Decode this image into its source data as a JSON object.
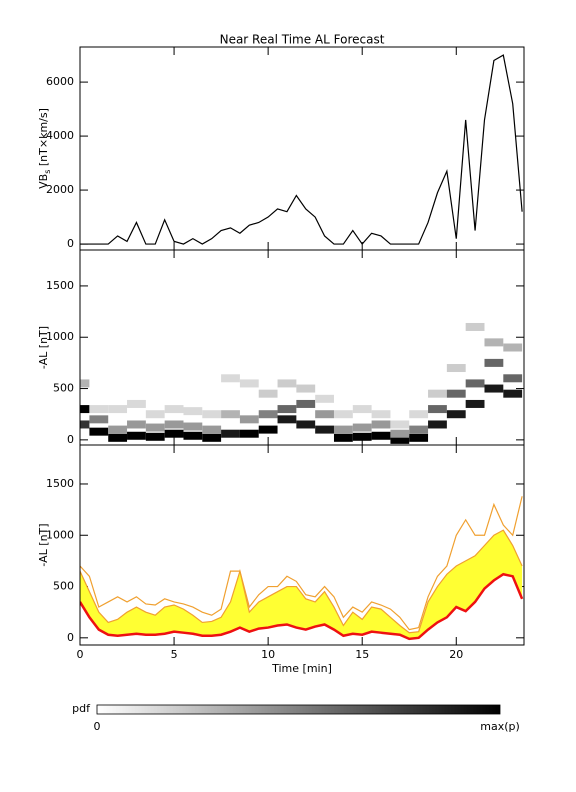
{
  "chart_data": [
    {
      "type": "line",
      "title": "Near Real Time AL Forecast",
      "y_label": "VB",
      "y_label_sub": "s",
      "y_label_rest": " [nT×km/s]",
      "x": [
        0,
        0.5,
        1,
        1.5,
        2,
        2.5,
        3,
        3.5,
        4,
        4.5,
        5,
        5.5,
        6,
        6.5,
        7,
        7.5,
        8,
        8.5,
        9,
        9.5,
        10,
        10.5,
        11,
        11.5,
        12,
        12.5,
        13,
        13.5,
        14,
        14.5,
        15,
        15.5,
        16,
        16.5,
        17,
        17.5,
        18,
        18.5,
        19,
        19.5,
        20,
        20.5,
        21,
        21.5,
        22,
        22.5,
        23,
        23.5
      ],
      "values": [
        0,
        0,
        0,
        0,
        300,
        100,
        800,
        0,
        0,
        900,
        100,
        0,
        200,
        0,
        200,
        500,
        600,
        400,
        700,
        800,
        1000,
        1300,
        1200,
        1800,
        1300,
        1000,
        300,
        0,
        0,
        500,
        0,
        400,
        300,
        0,
        0,
        0,
        0,
        800,
        1900,
        2700,
        200,
        4600,
        500,
        4600,
        6800,
        7000,
        5200,
        1200
      ],
      "color": "#000000",
      "xlim": [
        0,
        23.6
      ],
      "xticks": [
        0,
        5,
        10,
        15,
        20
      ],
      "ylim": [
        -220,
        7300
      ],
      "yticks": [
        0,
        2000,
        4000,
        6000
      ]
    },
    {
      "type": "heatmap",
      "y_label": "-AL [nT]",
      "cells": [
        [
          0,
          300,
          1
        ],
        [
          0,
          150,
          0.8
        ],
        [
          0,
          550,
          0.3
        ],
        [
          1,
          80,
          1
        ],
        [
          1,
          200,
          0.5
        ],
        [
          1,
          300,
          0.15
        ],
        [
          2,
          20,
          1
        ],
        [
          2,
          100,
          0.4
        ],
        [
          2,
          300,
          0.15
        ],
        [
          3,
          40,
          1
        ],
        [
          3,
          150,
          0.4
        ],
        [
          3,
          350,
          0.15
        ],
        [
          4,
          30,
          1
        ],
        [
          4,
          120,
          0.4
        ],
        [
          4,
          250,
          0.15
        ],
        [
          5,
          60,
          1
        ],
        [
          5,
          150,
          0.4
        ],
        [
          5,
          300,
          0.15
        ],
        [
          6,
          40,
          1
        ],
        [
          6,
          130,
          0.4
        ],
        [
          6,
          280,
          0.15
        ],
        [
          7,
          20,
          1
        ],
        [
          7,
          100,
          0.4
        ],
        [
          7,
          250,
          0.15
        ],
        [
          8,
          60,
          0.9
        ],
        [
          8,
          250,
          0.3
        ],
        [
          8,
          600,
          0.15
        ],
        [
          9,
          60,
          1
        ],
        [
          9,
          200,
          0.4
        ],
        [
          9,
          550,
          0.15
        ],
        [
          10,
          100,
          1
        ],
        [
          10,
          250,
          0.5
        ],
        [
          10,
          450,
          0.2
        ],
        [
          11,
          200,
          0.9
        ],
        [
          11,
          300,
          0.6
        ],
        [
          11,
          550,
          0.2
        ],
        [
          12,
          150,
          0.9
        ],
        [
          12,
          350,
          0.6
        ],
        [
          12,
          500,
          0.2
        ],
        [
          13,
          100,
          0.9
        ],
        [
          13,
          250,
          0.4
        ],
        [
          13,
          400,
          0.15
        ],
        [
          14,
          20,
          1
        ],
        [
          14,
          100,
          0.4
        ],
        [
          14,
          250,
          0.15
        ],
        [
          15,
          30,
          1
        ],
        [
          15,
          120,
          0.4
        ],
        [
          15,
          300,
          0.15
        ],
        [
          16,
          40,
          1
        ],
        [
          16,
          150,
          0.4
        ],
        [
          16,
          250,
          0.15
        ],
        [
          17,
          0,
          1
        ],
        [
          17,
          60,
          0.4
        ],
        [
          17,
          150,
          0.15
        ],
        [
          18,
          20,
          1
        ],
        [
          18,
          100,
          0.5
        ],
        [
          18,
          250,
          0.15
        ],
        [
          19,
          150,
          0.9
        ],
        [
          19,
          300,
          0.6
        ],
        [
          19,
          450,
          0.2
        ],
        [
          20,
          250,
          0.9
        ],
        [
          20,
          450,
          0.6
        ],
        [
          20,
          700,
          0.2
        ],
        [
          21,
          350,
          0.9
        ],
        [
          21,
          550,
          0.6
        ],
        [
          21,
          1100,
          0.2
        ],
        [
          22,
          500,
          0.9
        ],
        [
          22,
          750,
          0.6
        ],
        [
          22,
          950,
          0.3
        ],
        [
          23,
          450,
          0.9
        ],
        [
          23,
          600,
          0.6
        ],
        [
          23,
          900,
          0.3
        ]
      ],
      "xlim": [
        0,
        23.6
      ],
      "xticks": [
        0,
        5,
        10,
        15,
        20
      ],
      "ylim": [
        -50,
        1850
      ],
      "yticks": [
        0,
        500,
        1000,
        1500
      ],
      "colorbar": {
        "label": "pdf",
        "min": 0,
        "max_label": "max(p)"
      }
    },
    {
      "type": "line",
      "y_label": "-AL [nT]",
      "x_label": "Time [min]",
      "x": [
        0,
        0.5,
        1,
        1.5,
        2,
        2.5,
        3,
        3.5,
        4,
        4.5,
        5,
        5.5,
        6,
        6.5,
        7,
        7.5,
        8,
        8.5,
        9,
        9.5,
        10,
        10.5,
        11,
        11.5,
        12,
        12.5,
        13,
        13.5,
        14,
        14.5,
        15,
        15.5,
        16,
        16.5,
        17,
        17.5,
        18,
        18.5,
        19,
        19.5,
        20,
        20.5,
        21,
        21.5,
        22,
        22.5,
        23,
        23.5
      ],
      "series": [
        {
          "color": "#f0a030",
          "values": [
            700,
            600,
            300,
            350,
            400,
            350,
            400,
            330,
            320,
            380,
            350,
            330,
            300,
            250,
            220,
            280,
            650,
            650,
            300,
            420,
            500,
            500,
            600,
            550,
            420,
            400,
            500,
            400,
            200,
            300,
            250,
            350,
            320,
            280,
            200,
            80,
            100,
            400,
            600,
            700,
            1000,
            1150,
            1000,
            1000,
            1300,
            1100,
            1000,
            1380
          ]
        },
        {
          "color": "#f0a030",
          "fill": "#ffff33",
          "values": [
            650,
            450,
            250,
            150,
            180,
            250,
            300,
            250,
            220,
            300,
            320,
            280,
            220,
            150,
            160,
            200,
            350,
            650,
            250,
            350,
            400,
            450,
            500,
            500,
            380,
            350,
            450,
            300,
            120,
            250,
            180,
            300,
            280,
            200,
            120,
            50,
            60,
            350,
            500,
            620,
            700,
            750,
            800,
            900,
            1000,
            1050,
            900,
            700
          ]
        },
        {
          "color": "#ee1111",
          "values": [
            350,
            200,
            80,
            30,
            20,
            30,
            40,
            30,
            30,
            40,
            60,
            50,
            40,
            20,
            20,
            30,
            60,
            100,
            60,
            90,
            100,
            120,
            130,
            100,
            80,
            110,
            130,
            80,
            20,
            40,
            30,
            60,
            50,
            40,
            30,
            -10,
            0,
            80,
            150,
            200,
            300,
            260,
            350,
            480,
            560,
            620,
            600,
            380
          ]
        }
      ],
      "xlim": [
        0,
        23.6
      ],
      "xticks": [
        0,
        5,
        10,
        15,
        20
      ],
      "ylim": [
        -70,
        1880
      ],
      "yticks": [
        0,
        500,
        1000,
        1500
      ]
    }
  ]
}
